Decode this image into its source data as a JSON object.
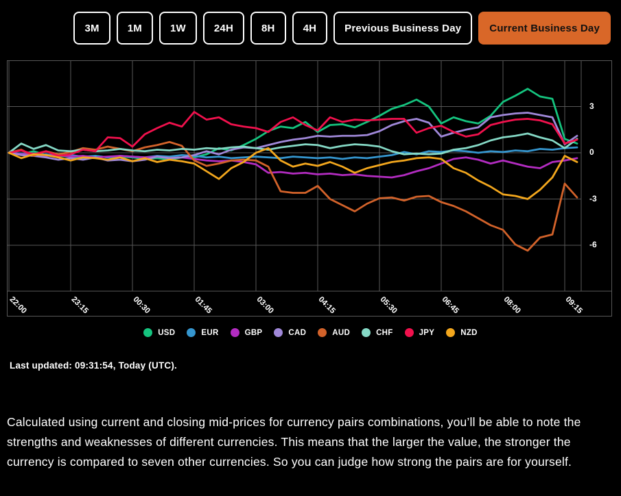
{
  "colors": {
    "background": "#000000",
    "accent_orange": "#d96728",
    "grid": "#585858",
    "text": "#ffffff"
  },
  "toolbar": {
    "buttons": [
      {
        "label": "3M",
        "active": false
      },
      {
        "label": "1M",
        "active": false
      },
      {
        "label": "1W",
        "active": false
      },
      {
        "label": "24H",
        "active": false
      },
      {
        "label": "8H",
        "active": false
      },
      {
        "label": "4H",
        "active": false
      },
      {
        "label": "Previous Business Day",
        "active": false
      },
      {
        "label": "Current Business Day",
        "active": true
      }
    ]
  },
  "chart_data": {
    "type": "line",
    "x_tick_labels": [
      "22:00",
      "23:15",
      "00:30",
      "01:45",
      "03:00",
      "04:15",
      "05:30",
      "06:45",
      "08:00",
      "09:15"
    ],
    "x_step_minutes": 15,
    "x_tick_minutes": 75,
    "ylim": [
      -9,
      6
    ],
    "y_ticks": [
      3,
      0,
      -3,
      -6
    ],
    "grid": true,
    "legend_position": "bottom",
    "series": [
      {
        "name": "USD",
        "color": "#15c47f",
        "values": [
          0,
          -0.1,
          0.1,
          -0.15,
          -0.2,
          -0.25,
          -0.35,
          -0.2,
          -0.3,
          -0.25,
          -0.3,
          -0.4,
          -0.35,
          -0.45,
          -0.3,
          -0.3,
          -0.1,
          0.3,
          0.15,
          0.5,
          0.9,
          1.4,
          1.7,
          1.6,
          2.0,
          1.35,
          1.8,
          1.85,
          1.65,
          2.0,
          2.4,
          2.85,
          3.1,
          3.45,
          3.0,
          1.9,
          2.3,
          2.05,
          1.9,
          2.4,
          3.3,
          3.7,
          4.15,
          3.65,
          3.5,
          0.9,
          0.6
        ]
      },
      {
        "name": "EUR",
        "color": "#3596cf",
        "values": [
          0,
          -0.05,
          -0.15,
          -0.1,
          -0.2,
          -0.15,
          -0.25,
          -0.2,
          -0.3,
          -0.2,
          -0.25,
          -0.3,
          -0.2,
          -0.25,
          -0.15,
          -0.2,
          -0.3,
          -0.25,
          -0.35,
          -0.3,
          -0.25,
          -0.3,
          -0.35,
          -0.25,
          -0.3,
          -0.35,
          -0.3,
          -0.4,
          -0.3,
          -0.35,
          -0.25,
          -0.15,
          0.05,
          -0.1,
          0.1,
          0.05,
          0.15,
          0.1,
          0.0,
          0.1,
          0.05,
          0.15,
          0.1,
          0.25,
          0.2,
          0.3,
          0.35
        ]
      },
      {
        "name": "GBP",
        "color": "#b32cc1",
        "values": [
          0,
          -0.1,
          -0.05,
          -0.2,
          -0.15,
          -0.25,
          -0.2,
          -0.3,
          -0.25,
          -0.2,
          -0.25,
          -0.3,
          -0.25,
          -0.35,
          -0.3,
          -0.4,
          -0.5,
          -0.55,
          -0.5,
          -0.6,
          -0.75,
          -1.3,
          -1.25,
          -1.35,
          -1.3,
          -1.4,
          -1.35,
          -1.45,
          -1.4,
          -1.5,
          -1.55,
          -1.6,
          -1.45,
          -1.2,
          -1.0,
          -0.7,
          -0.4,
          -0.3,
          -0.45,
          -0.7,
          -0.5,
          -0.7,
          -0.9,
          -1.0,
          -0.6,
          -0.5,
          -0.35
        ]
      },
      {
        "name": "CAD",
        "color": "#a088d9",
        "values": [
          0,
          -0.15,
          -0.2,
          -0.3,
          -0.45,
          -0.35,
          -0.45,
          -0.3,
          -0.5,
          -0.45,
          -0.55,
          -0.45,
          -0.25,
          -0.35,
          -0.3,
          -0.15,
          0.1,
          -0.1,
          0.2,
          0.35,
          0.3,
          0.5,
          0.7,
          0.85,
          0.95,
          1.1,
          1.05,
          1.1,
          1.1,
          1.15,
          1.4,
          1.8,
          2.05,
          2.2,
          1.95,
          1.05,
          1.3,
          1.5,
          1.65,
          2.3,
          2.45,
          2.55,
          2.6,
          2.45,
          2.3,
          0.55,
          1.1
        ]
      },
      {
        "name": "AUD",
        "color": "#d2622a",
        "values": [
          0,
          0.2,
          -0.2,
          0.1,
          -0.1,
          0.05,
          0.3,
          0.2,
          0.4,
          0.25,
          0.1,
          0.35,
          0.5,
          0.7,
          0.45,
          -0.5,
          -0.85,
          -0.7,
          -0.5,
          -0.45,
          -0.5,
          -0.9,
          -2.5,
          -2.6,
          -2.6,
          -2.15,
          -3.0,
          -3.4,
          -3.8,
          -3.3,
          -2.95,
          -2.9,
          -3.1,
          -2.85,
          -2.8,
          -3.2,
          -3.45,
          -3.8,
          -4.25,
          -4.7,
          -5.0,
          -5.95,
          -6.35,
          -5.5,
          -5.3,
          -2.0,
          -2.9
        ]
      },
      {
        "name": "CHF",
        "color": "#85d9c6",
        "values": [
          0,
          0.6,
          0.25,
          0.5,
          0.15,
          0.1,
          0.2,
          0.1,
          0.15,
          0.25,
          0.15,
          0.1,
          0.2,
          0.15,
          0.25,
          0.2,
          0.3,
          0.25,
          0.35,
          0.4,
          0.3,
          0.2,
          0.35,
          0.45,
          0.55,
          0.5,
          0.3,
          0.45,
          0.55,
          0.5,
          0.4,
          0.1,
          -0.1,
          -0.05,
          -0.1,
          -0.05,
          0.2,
          0.3,
          0.5,
          0.8,
          1.0,
          1.1,
          1.25,
          1.0,
          0.8,
          0.3,
          0.9
        ]
      },
      {
        "name": "JPY",
        "color": "#f1114d",
        "values": [
          0,
          0.15,
          -0.1,
          0.1,
          -0.2,
          -0.1,
          0.2,
          0.1,
          1.0,
          0.95,
          0.4,
          1.2,
          1.6,
          1.95,
          1.7,
          2.65,
          2.15,
          2.3,
          1.85,
          1.7,
          1.6,
          1.35,
          2.0,
          2.3,
          1.8,
          1.45,
          2.3,
          2.0,
          2.15,
          2.1,
          2.15,
          2.2,
          2.2,
          1.3,
          1.6,
          1.75,
          1.35,
          1.05,
          1.2,
          1.8,
          2.0,
          2.15,
          2.2,
          2.1,
          1.85,
          0.6,
          0.85
        ]
      },
      {
        "name": "NZD",
        "color": "#f3a71d",
        "values": [
          0,
          -0.35,
          -0.1,
          -0.15,
          -0.3,
          -0.5,
          -0.3,
          -0.35,
          -0.45,
          -0.3,
          -0.55,
          -0.35,
          -0.6,
          -0.45,
          -0.55,
          -0.7,
          -1.2,
          -1.7,
          -1.0,
          -0.6,
          0.0,
          0.3,
          -0.5,
          -0.9,
          -0.7,
          -0.85,
          -0.6,
          -0.9,
          -1.3,
          -1.0,
          -0.8,
          -0.6,
          -0.5,
          -0.35,
          -0.3,
          -0.4,
          -1.0,
          -1.3,
          -1.8,
          -2.2,
          -2.7,
          -2.8,
          -3.0,
          -2.4,
          -1.6,
          -0.2,
          -0.6
        ]
      }
    ]
  },
  "status": {
    "last_updated": "Last updated: 09:31:54, Today (UTC)."
  },
  "description": "Calculated using current and closing mid-prices for currency pairs combinations, you’ll be able to note the strengths and weaknesses of different currencies. This means that the larger the value, the stronger the currency is compared to seven other currencies. So you can judge how strong the pairs are for yourself."
}
